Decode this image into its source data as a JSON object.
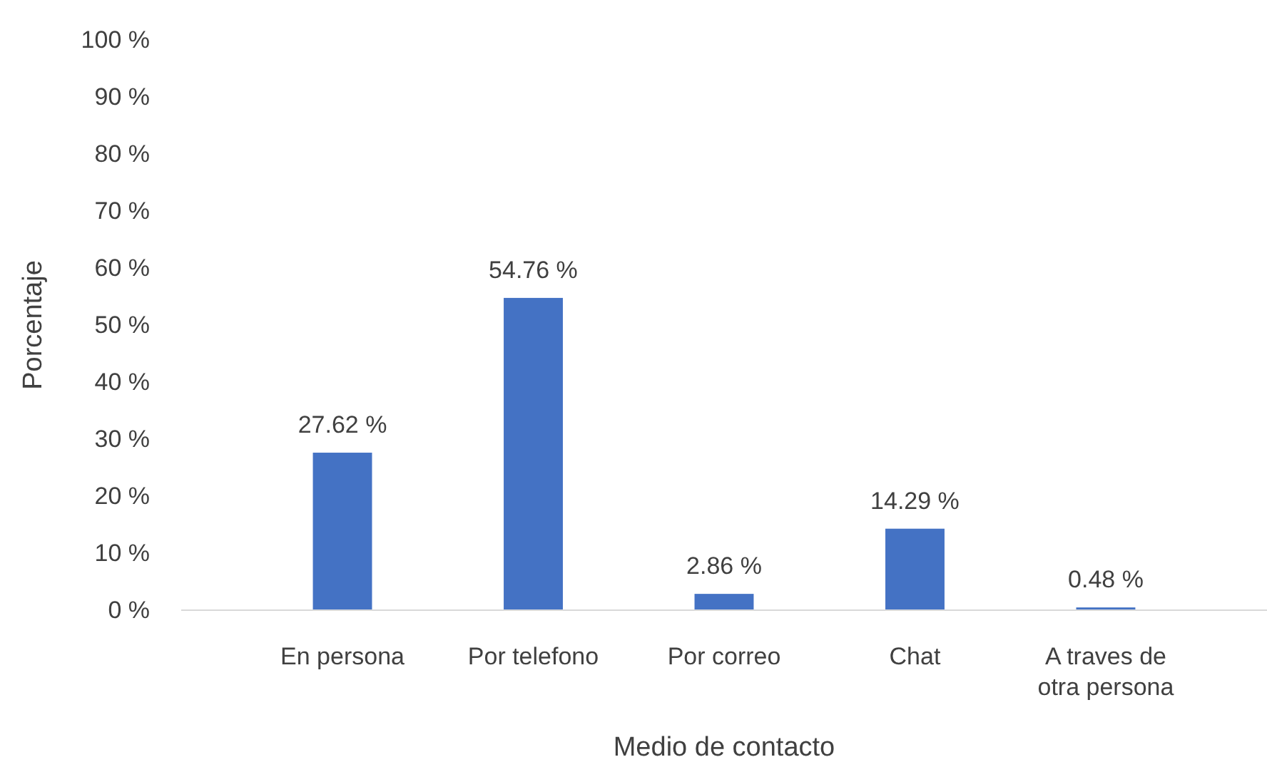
{
  "chart_data": {
    "type": "bar",
    "xlabel": "Medio de contacto",
    "ylabel": "Porcentaje",
    "categories": [
      "En persona",
      "Por telefono",
      "Por correo",
      "Chat",
      "A traves de otra persona"
    ],
    "values": [
      27.62,
      54.76,
      2.86,
      14.29,
      0.48
    ],
    "value_labels": [
      "27.62 %",
      "54.76 %",
      "2.86 %",
      "14.29 %",
      "0.48 %"
    ],
    "color": "#4472c4",
    "ylim": [
      0,
      100
    ],
    "yticks": [
      {
        "value": 0,
        "label": "0 %"
      },
      {
        "value": 10,
        "label": "10 %"
      },
      {
        "value": 20,
        "label": "20 %"
      },
      {
        "value": 30,
        "label": "30 %"
      },
      {
        "value": 40,
        "label": "40 %"
      },
      {
        "value": 50,
        "label": "50 %"
      },
      {
        "value": 60,
        "label": "60 %"
      },
      {
        "value": 70,
        "label": "70 %"
      },
      {
        "value": 80,
        "label": "80 %"
      },
      {
        "value": 90,
        "label": "90 %"
      },
      {
        "value": 100,
        "label": "100 %"
      }
    ],
    "grid": false
  }
}
